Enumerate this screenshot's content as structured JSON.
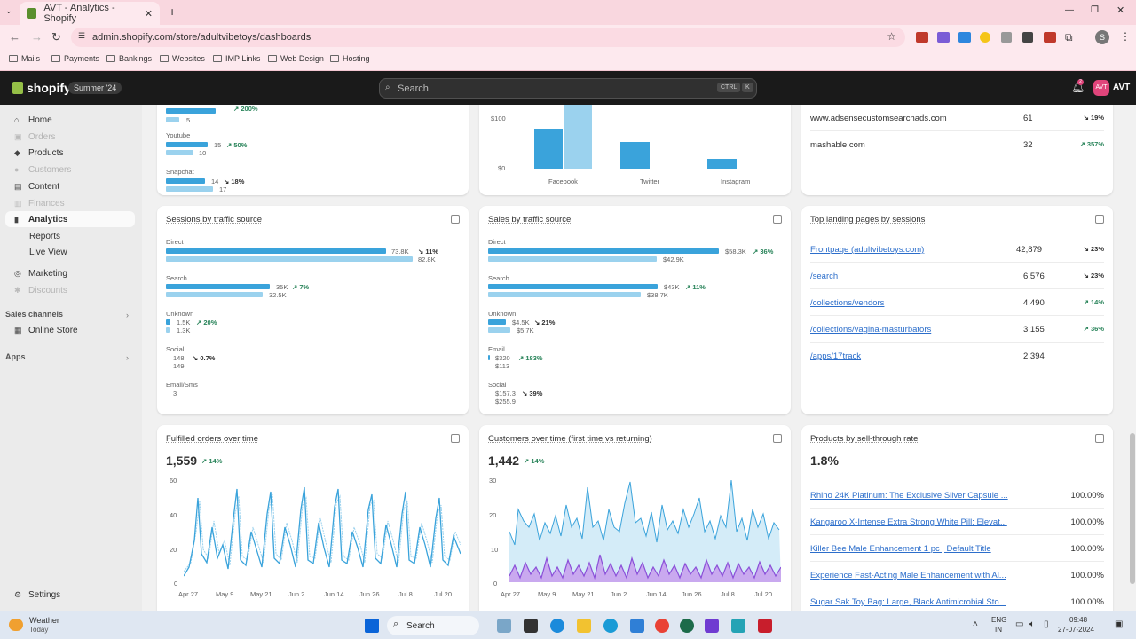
{
  "browser": {
    "tab_title": "AVT - Analytics - Shopify",
    "url": "admin.shopify.com/store/adultvibetoys/dashboards",
    "profile_initial": "S",
    "bookmarks": [
      "Mails",
      "Payments",
      "Bankings",
      "Websites",
      "IMP Links",
      "Web Design",
      "Hosting"
    ]
  },
  "topbar": {
    "brand": "shopify",
    "edition": "Summer '24",
    "search_placeholder": "Search",
    "shortcut_ctrl": "CTRL",
    "shortcut_k": "K",
    "notif_count": "2",
    "avatar_initials": "AVT",
    "store_name": "AVT"
  },
  "sidebar": {
    "items": [
      {
        "label": "Home"
      },
      {
        "label": "Orders"
      },
      {
        "label": "Products"
      },
      {
        "label": "Customers"
      },
      {
        "label": "Content"
      },
      {
        "label": "Finances"
      },
      {
        "label": "Analytics"
      },
      {
        "label": "Reports"
      },
      {
        "label": "Live View"
      },
      {
        "label": "Marketing"
      },
      {
        "label": "Discounts"
      }
    ],
    "sales_channels": "Sales channels",
    "online_store": "Online Store",
    "apps": "Apps",
    "settings": "Settings"
  },
  "top_partial": {
    "social": [
      {
        "label": "",
        "v1": "",
        "v2": "5",
        "pct": "200%"
      },
      {
        "label": "Youtube",
        "v1": "15",
        "v2": "10",
        "pct": "50%"
      },
      {
        "label": "Snapchat",
        "v1": "14",
        "v2": "17",
        "pct": "18%"
      }
    ],
    "sales_social": {
      "ticks": [
        "$100",
        "$0"
      ],
      "categories": [
        "Facebook",
        "Twitter",
        "Instagram"
      ]
    },
    "referrers": [
      {
        "site": "www.adsensecustomsearchads.com",
        "count": "61",
        "pct": "19%"
      },
      {
        "site": "mashable.com",
        "count": "32",
        "pct": "357%"
      }
    ]
  },
  "sessions_traffic": {
    "title": "Sessions by traffic source",
    "rows": [
      {
        "label": "Direct",
        "v1": "73.8K",
        "v2": "82.8K",
        "pct": "11%",
        "up": false
      },
      {
        "label": "Search",
        "v1": "35K",
        "v2": "32.5K",
        "pct": "7%",
        "up": true
      },
      {
        "label": "Unknown",
        "v1": "1.5K",
        "v2": "1.3K",
        "pct": "20%",
        "up": true
      },
      {
        "label": "Social",
        "v1": "148",
        "v2": "149",
        "pct": "0.7%",
        "up": false
      },
      {
        "label": "Email/Sms",
        "v1": "",
        "v2": "3",
        "pct": "",
        "up": false
      }
    ]
  },
  "sales_traffic": {
    "title": "Sales by traffic source",
    "rows": [
      {
        "label": "Direct",
        "v1": "$58.3K",
        "v2": "$42.9K",
        "pct": "36%",
        "up": true
      },
      {
        "label": "Search",
        "v1": "$43K",
        "v2": "$38.7K",
        "pct": "11%",
        "up": true
      },
      {
        "label": "Unknown",
        "v1": "$4.5K",
        "v2": "$5.7K",
        "pct": "21%",
        "up": false
      },
      {
        "label": "Email",
        "v1": "$320",
        "v2": "$113",
        "pct": "183%",
        "up": true
      },
      {
        "label": "Social",
        "v1": "$157.3",
        "v2": "$255.9",
        "pct": "39%",
        "up": false
      }
    ]
  },
  "landing": {
    "title": "Top landing pages by sessions",
    "rows": [
      {
        "page": "Frontpage (adultvibetoys.com)",
        "count": "42,879",
        "pct": "23%",
        "up": false
      },
      {
        "page": "/search",
        "count": "6,576",
        "pct": "23%",
        "up": false
      },
      {
        "page": "/collections/vendors",
        "count": "4,490",
        "pct": "14%",
        "up": true
      },
      {
        "page": "/collections/vagina-masturbators",
        "count": "3,155",
        "pct": "36%",
        "up": true
      },
      {
        "page": "/apps/17track",
        "count": "2,394",
        "pct": "",
        "up": false
      }
    ]
  },
  "fulfilled": {
    "title": "Fulfilled orders over time",
    "value": "1,559",
    "pct": "14%",
    "yticks": [
      "60",
      "40",
      "20",
      "0"
    ],
    "xticks": [
      "Apr 27",
      "May 9",
      "May 21",
      "Jun 2",
      "Jun 14",
      "Jun 26",
      "Jul 8",
      "Jul 20"
    ]
  },
  "customers": {
    "title": "Customers over time (first time vs returning)",
    "value": "1,442",
    "pct": "14%",
    "yticks": [
      "30",
      "20",
      "10",
      "0"
    ],
    "xticks": [
      "Apr 27",
      "May 9",
      "May 21",
      "Jun 2",
      "Jun 14",
      "Jun 26",
      "Jul 8",
      "Jul 20"
    ]
  },
  "sellthrough": {
    "title": "Products by sell-through rate",
    "value": "1.8%",
    "rows": [
      {
        "name": "Rhino 24K Platinum: The Exclusive Silver Capsule ...",
        "pct": "100.00%"
      },
      {
        "name": "Kangaroo X-Intense Extra Strong White Pill: Elevat...",
        "pct": "100.00%"
      },
      {
        "name": "Killer Bee Male Enhancement 1 pc | Default Title",
        "pct": "100.00%"
      },
      {
        "name": "Experience Fast-Acting Male Enhancement with Al...",
        "pct": "100.00%"
      },
      {
        "name": "Sugar Sak Toy Bag: Large, Black Antimicrobial Sto...",
        "pct": "100.00%"
      }
    ]
  },
  "taskbar": {
    "weather": "Weather",
    "weather_sub": "Today",
    "search": "Search",
    "lang": "ENG",
    "region": "IN",
    "time": "09:48",
    "date": "27-07-2024"
  },
  "colors": {
    "accent": "#3aa3db",
    "accent_light": "#9bd2ee",
    "positive": "#29845a",
    "purple": "#8a4fd8"
  }
}
